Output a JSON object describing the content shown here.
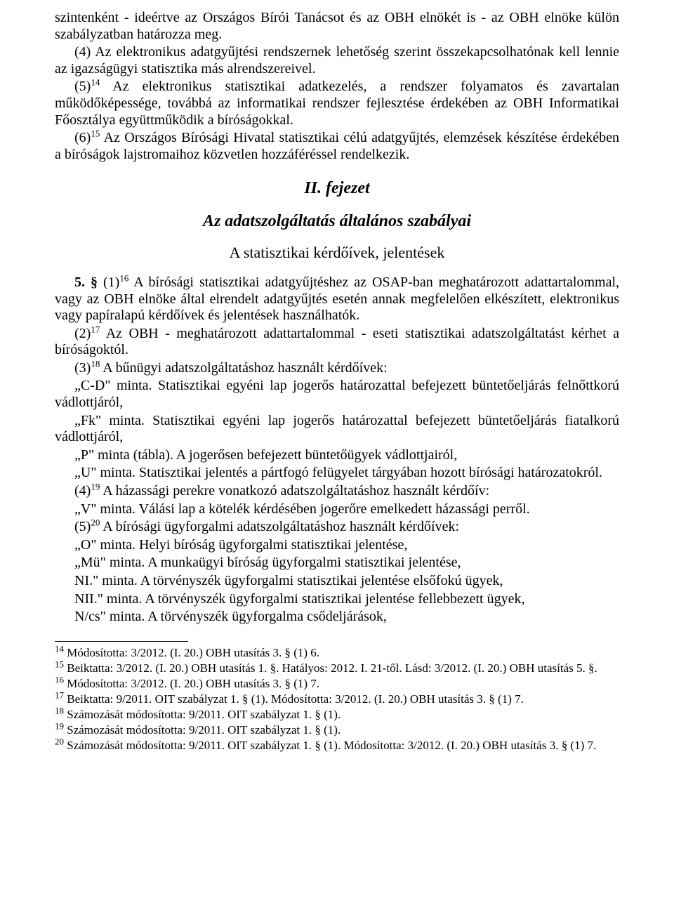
{
  "body": {
    "p1": "szintenként - ideértve az Országos Bírói Tanácsot és az OBH elnökét is - az OBH elnöke külön szabályzatban határozza meg.",
    "p2a": "(4) Az elektronikus adatgyűjtési rendszernek lehetőség szerint összekapcsolhatónak kell lennie az igazságügyi statisztika más alrendszereivel.",
    "p3_pre": "(5)",
    "p3_sup": "14",
    "p3_post": " Az elektronikus statisztikai adatkezelés, a rendszer folyamatos és zavartalan működőképessége, továbbá az informatikai rendszer fejlesztése érdekében az OBH Informatikai Főosztálya együttműködik a bíróságokkal.",
    "p4_pre": "(6)",
    "p4_sup": "15",
    "p4_post": " Az Országos Bírósági Hivatal statisztikai célú adatgyűjtés, elemzések készítése érdekében a bíróságok lajstromaihoz közvetlen hozzáféréssel rendelkezik.",
    "chapter": "II. fejezet",
    "section": "Az adatszolgáltatás általános szabályai",
    "subtitle": "A statisztikai kérdőívek, jelentések",
    "p5_bold": "5. §",
    "p5_pre": " (1)",
    "p5_sup": "16",
    "p5_post": " A bírósági statisztikai adatgyűjtéshez az OSAP-ban meghatározott adattartalommal, vagy az OBH elnöke által elrendelt adatgyűjtés esetén annak megfelelően elkészített, elektronikus vagy papíralapú kérdőívek és jelentések használhatók.",
    "p6_pre": "(2)",
    "p6_sup": "17",
    "p6_post": " Az OBH - meghatározott adattartalommal - eseti statisztikai adatszolgáltatást kérhet a bíróságoktól.",
    "p7_pre": "(3)",
    "p7_sup": "18",
    "p7_post": " A bűnügyi adatszolgáltatáshoz használt kérdőívek:",
    "p8": "„C-D\" minta. Statisztikai egyéni lap jogerős határozattal befejezett büntetőeljárás felnőttkorú vádlottjáról,",
    "p9": "„Fk\" minta. Statisztikai egyéni lap jogerős határozattal befejezett büntetőeljárás fiatalkorú vádlottjáról,",
    "p10": "„P\" minta (tábla). A jogerősen befejezett büntetőügyek vádlottjairól,",
    "p11": "„U\" minta. Statisztikai jelentés a pártfogó felügyelet tárgyában hozott bírósági határozatokról.",
    "p12_pre": "(4)",
    "p12_sup": "19",
    "p12_post": " A házassági perekre vonatkozó adatszolgáltatáshoz használt kérdőív:",
    "p13": "„V\" minta. Válási lap a kötelék kérdésében jogerőre emelkedett házassági perről.",
    "p14_pre": "(5)",
    "p14_sup": "20",
    "p14_post": " A bírósági ügyforgalmi adatszolgáltatáshoz használt kérdőívek:",
    "p15": "„O\" minta. Helyi bíróság ügyforgalmi statisztikai jelentése,",
    "p16": "„Mü\" minta. A munkaügyi bíróság ügyforgalmi statisztikai jelentése,",
    "p17": "NI.\" minta. A törvényszék ügyforgalmi statisztikai jelentése elsőfokú ügyek,",
    "p18": "NII.\" minta. A törvényszék ügyforgalmi statisztikai jelentése fellebbezett ügyek,",
    "p19": "N/cs\" minta. A törvényszék ügyforgalma csődeljárások,"
  },
  "footnotes": {
    "f14_sup": "14",
    "f14": " Módosította: 3/2012. (I. 20.) OBH utasítás 3. § (1) 6.",
    "f15_sup": "15",
    "f15": " Beiktatta: 3/2012. (I. 20.) OBH utasítás 1. §. Hatályos: 2012. I. 21-től. Lásd: 3/2012. (I. 20.) OBH utasítás 5. §.",
    "f16_sup": "16",
    "f16": " Módosította: 3/2012. (I. 20.) OBH utasítás 3. § (1) 7.",
    "f17_sup": "17",
    "f17": " Beiktatta: 9/2011. OIT szabályzat 1. § (1). Módosította: 3/2012. (I. 20.) OBH utasítás 3. § (1) 7.",
    "f18_sup": "18",
    "f18": " Számozását módosította: 9/2011. OIT szabályzat 1. § (1).",
    "f19_sup": "19",
    "f19": " Számozását módosította: 9/2011. OIT szabályzat 1. § (1).",
    "f20_sup": "20",
    "f20": " Számozását módosította: 9/2011. OIT szabályzat 1. § (1). Módosította: 3/2012. (I. 20.) OBH utasítás 3. § (1) 7."
  }
}
